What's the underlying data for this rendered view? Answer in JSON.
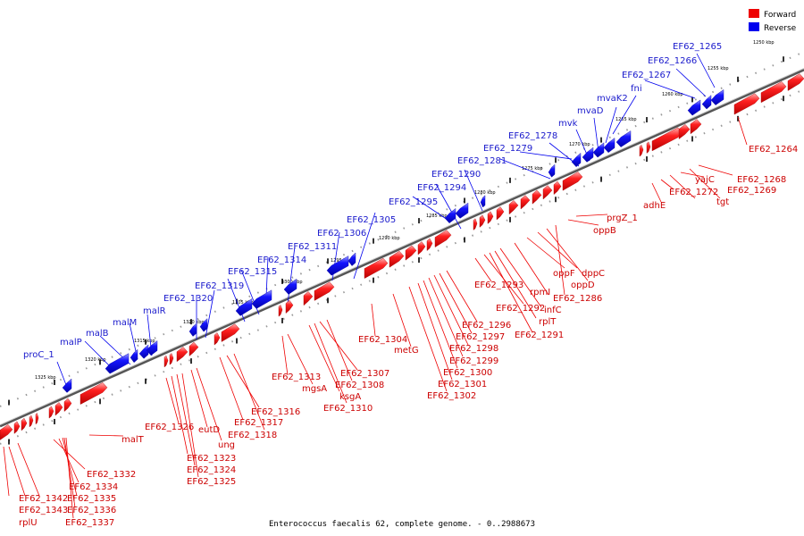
{
  "caption": "Enterococcus faecalis 62, complete genome. - 0..2988673",
  "colors": {
    "forward": "#ee0000",
    "reverse": "#0000ee",
    "backbone": "#555555"
  },
  "legend": {
    "forward": "Forward",
    "reverse": "Reverse"
  },
  "scale_labels": [
    "1250 kbp",
    "1255 kbp",
    "1260 kbp",
    "1265 kbp",
    "1270 kbp",
    "1275 kbp",
    "1280 kbp",
    "1285 kbp",
    "1290 kbp",
    "1295 kbp",
    "1300 kbp",
    "1305 kbp",
    "1310 kbp",
    "1315 kbp",
    "1320 kbp",
    "1325 kbp"
  ],
  "reverse_labels": [
    "EF62_1265",
    "EF62_1266",
    "EF62_1267",
    "fni",
    "mvaK2",
    "mvaD",
    "mvk",
    "EF62_1278",
    "EF62_1279",
    "EF62_1281",
    "EF62_1290",
    "EF62_1294",
    "EF62_1295",
    "EF62_1305",
    "EF62_1306",
    "EF62_1311",
    "EF62_1314",
    "EF62_1315",
    "EF62_1319",
    "EF62_1320",
    "malR",
    "malM",
    "malB",
    "malP",
    "proC_1"
  ],
  "forward_labels": [
    "EF62_1264",
    "EF62_1268",
    "yajC",
    "EF62_1269",
    "EF62_1272",
    "tgt",
    "adhE",
    "prgZ_1",
    "oppB",
    "dppC",
    "oppF",
    "oppD",
    "EF62_1286",
    "rpmI",
    "infC",
    "rplT",
    "EF62_1293",
    "EF62_1292",
    "EF62_1291",
    "EF62_1296",
    "EF62_1297",
    "EF62_1298",
    "EF62_1299",
    "EF62_1300",
    "EF62_1301",
    "EF62_1302",
    "EF62_1304",
    "metG",
    "EF62_1313",
    "mgsA",
    "EF62_1307",
    "EF62_1308",
    "ksgA",
    "EF62_1310",
    "EF62_1316",
    "EF62_1317",
    "EF62_1318",
    "EF62_1326",
    "eutD",
    "ung",
    "EF62_1323",
    "EF62_1324",
    "EF62_1325",
    "malT",
    "EF62_1332",
    "EF62_1334",
    "EF62_1335",
    "EF62_1336",
    "EF62_1337",
    "EF62_1342",
    "EF62_1343",
    "rplU"
  ]
}
